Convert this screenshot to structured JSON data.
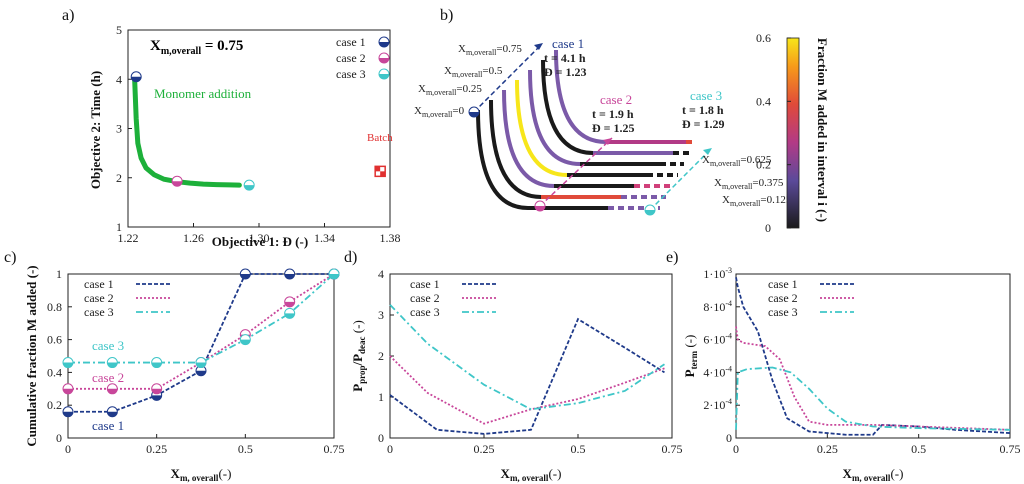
{
  "colors": {
    "case1": "#1f3a8a",
    "case2": "#c8469a",
    "case3": "#3fc6c8",
    "monomer": "#1db03a",
    "batch": "#e03030",
    "axis": "#222222"
  },
  "panels": {
    "a": "a)",
    "b": "b)",
    "c": "c)",
    "d": "d)",
    "e": "e)"
  },
  "chart_data": [
    {
      "id": "a",
      "type": "scatter",
      "xlabel": "Objective 1: Đ (-)",
      "ylabel": "Objective 2: Time (h)",
      "xlim": [
        1.22,
        1.38
      ],
      "ylim": [
        1,
        5
      ],
      "xticks": [
        "1.22",
        "1.26",
        "1.30",
        "1.34",
        "1.38"
      ],
      "yticks": [
        "1",
        "2",
        "3",
        "4",
        "5"
      ],
      "annotations": {
        "header": "Xm,overall = 0.75",
        "header_main": "X",
        "header_sub": "m,overall",
        "header_rest": " = 0.75",
        "monomer": "Monomer addition",
        "batch": "Batch"
      },
      "legend": [
        "case 1",
        "case 2",
        "case 3"
      ],
      "front": {
        "x": [
          1.224,
          1.225,
          1.226,
          1.228,
          1.231,
          1.236,
          1.242,
          1.25,
          1.258,
          1.266,
          1.274,
          1.282,
          1.288
        ],
        "y": [
          4.05,
          3.2,
          2.7,
          2.4,
          2.2,
          2.06,
          1.97,
          1.92,
          1.89,
          1.87,
          1.86,
          1.855,
          1.85
        ]
      },
      "cases": [
        {
          "name": "case 1",
          "x": 1.225,
          "y": 4.05
        },
        {
          "name": "case 2",
          "x": 1.25,
          "y": 1.93
        },
        {
          "name": "case 3",
          "x": 1.294,
          "y": 1.85
        }
      ],
      "batch": {
        "x": 1.374,
        "y": 2.13
      }
    },
    {
      "id": "b",
      "type": "line",
      "colorbar": {
        "label": "Fraction M added in interval i (-)",
        "ticks": [
          "0",
          "0.2",
          "0.4",
          "0.6"
        ],
        "range": [
          0,
          0.6
        ]
      },
      "level_labels": {
        "left": [
          "0.75",
          "0.5",
          "0.25",
          "0"
        ],
        "right": [
          "0.625",
          "0.375",
          "0.125"
        ]
      },
      "level_label_main": "X",
      "level_label_sub": "m,overall",
      "case_labels": [
        {
          "name": "case 1",
          "t": "t = 4.1 h",
          "d": "Đ = 1.23"
        },
        {
          "name": "case 2",
          "t": "t = 1.9 h",
          "d": "Đ = 1.25"
        },
        {
          "name": "case 3",
          "t": "t = 1.8 h",
          "d": "Đ = 1.29"
        }
      ]
    },
    {
      "id": "c",
      "type": "line",
      "ylabel": "Cumulative fraction M added (-)",
      "xlabel": "Xm, overall(-)",
      "xlabel_main": "X",
      "xlabel_sub": "m, overall",
      "xlabel_rest": "(-)",
      "xlim": [
        0,
        0.75
      ],
      "ylim": [
        0,
        1
      ],
      "xticks": [
        "0",
        "0.25",
        "0.5",
        "0.75"
      ],
      "yticks": [
        "0",
        "0.2",
        "0.4",
        "0.6",
        "0.8",
        "1"
      ],
      "x": [
        0,
        0.125,
        0.25,
        0.375,
        0.5,
        0.625,
        0.75
      ],
      "legend": [
        "case 1",
        "case 2",
        "case 3"
      ],
      "series": [
        {
          "name": "case 1",
          "values": [
            0.16,
            0.16,
            0.26,
            0.41,
            1.0,
            1.0,
            1.0
          ]
        },
        {
          "name": "case 2",
          "values": [
            0.3,
            0.3,
            0.3,
            0.46,
            0.63,
            0.83,
            1.0
          ]
        },
        {
          "name": "case 3",
          "values": [
            0.46,
            0.46,
            0.46,
            0.46,
            0.6,
            0.76,
            1.0
          ]
        }
      ],
      "inline_labels": [
        "case 3",
        "case 2",
        "case 1"
      ]
    },
    {
      "id": "d",
      "type": "line",
      "ylabel": "Pprop/Pdeac (-)",
      "ylabel_main": "P",
      "ylabel_sub1": "prop",
      "ylabel_mid": "/P",
      "ylabel_sub2": "deac",
      "ylabel_rest": " (-)",
      "xlabel": "Xm, overall(-)",
      "xlabel_main": "X",
      "xlabel_sub": "m, overall",
      "xlabel_rest": "(-)",
      "xlim": [
        0,
        0.75
      ],
      "ylim": [
        0,
        4
      ],
      "xticks": [
        "0",
        "0.25",
        "0.5",
        "0.75"
      ],
      "yticks": [
        "0",
        "1",
        "2",
        "3",
        "4"
      ],
      "legend": [
        "case 1",
        "case 2",
        "case 3"
      ],
      "series": [
        {
          "name": "case 1",
          "x": [
            0,
            0.125,
            0.25,
            0.375,
            0.5,
            0.625,
            0.73
          ],
          "values": [
            1.05,
            0.2,
            0.1,
            0.2,
            2.9,
            2.2,
            1.6
          ]
        },
        {
          "name": "case 2",
          "x": [
            0,
            0.1,
            0.25,
            0.375,
            0.5,
            0.625,
            0.73
          ],
          "values": [
            2.0,
            1.1,
            0.35,
            0.7,
            0.95,
            1.35,
            1.7
          ]
        },
        {
          "name": "case 3",
          "x": [
            0,
            0.1,
            0.25,
            0.375,
            0.5,
            0.625,
            0.73
          ],
          "values": [
            3.25,
            2.3,
            1.3,
            0.7,
            0.85,
            1.15,
            1.8
          ]
        }
      ]
    },
    {
      "id": "e",
      "type": "line",
      "ylabel": "Pterm (-)",
      "ylabel_main": "P",
      "ylabel_sub": "term",
      "ylabel_rest": " (-)",
      "xlabel": "Xm, overall(-)",
      "xlabel_main": "X",
      "xlabel_sub": "m, overall",
      "xlabel_rest": "(-)",
      "xlim": [
        0,
        0.75
      ],
      "ylim": [
        0,
        0.001
      ],
      "xticks": [
        "0",
        "0.25",
        "0.5",
        "0.75"
      ],
      "yticks": [
        {
          "base": "0",
          "exp": ""
        },
        {
          "base": "2·10",
          "exp": "-4"
        },
        {
          "base": "4·10",
          "exp": "-4"
        },
        {
          "base": "6·10",
          "exp": "-4"
        },
        {
          "base": "8·10",
          "exp": "-4"
        },
        {
          "base": "1·10",
          "exp": "-3"
        }
      ],
      "legend": [
        "case 1",
        "case 2",
        "case 3"
      ],
      "series": [
        {
          "name": "case 1",
          "x": [
            0,
            0.005,
            0.02,
            0.06,
            0.1,
            0.14,
            0.2,
            0.3,
            0.375,
            0.4,
            0.5,
            0.6,
            0.75
          ],
          "values": [
            0.00098,
            0.00092,
            0.0008,
            0.00065,
            0.00035,
            0.00012,
            4e-05,
            2e-05,
            2e-05,
            8e-05,
            7e-05,
            5e-05,
            3e-05
          ]
        },
        {
          "name": "case 2",
          "x": [
            0,
            0.005,
            0.02,
            0.08,
            0.12,
            0.16,
            0.2,
            0.25,
            0.375,
            0.5,
            0.75
          ],
          "values": [
            0.00068,
            0.0006,
            0.00058,
            0.00056,
            0.00048,
            0.00025,
            0.0001,
            8e-05,
            8e-05,
            7e-05,
            5e-05
          ]
        },
        {
          "name": "case 3",
          "x": [
            0,
            0.005,
            0.03,
            0.1,
            0.15,
            0.2,
            0.25,
            0.3,
            0.375,
            0.5,
            0.75
          ],
          "values": [
            5e-05,
            0.0004,
            0.00042,
            0.00043,
            0.0004,
            0.0003,
            0.00018,
            0.0001,
            7e-05,
            6e-05,
            5e-05
          ]
        }
      ]
    }
  ]
}
